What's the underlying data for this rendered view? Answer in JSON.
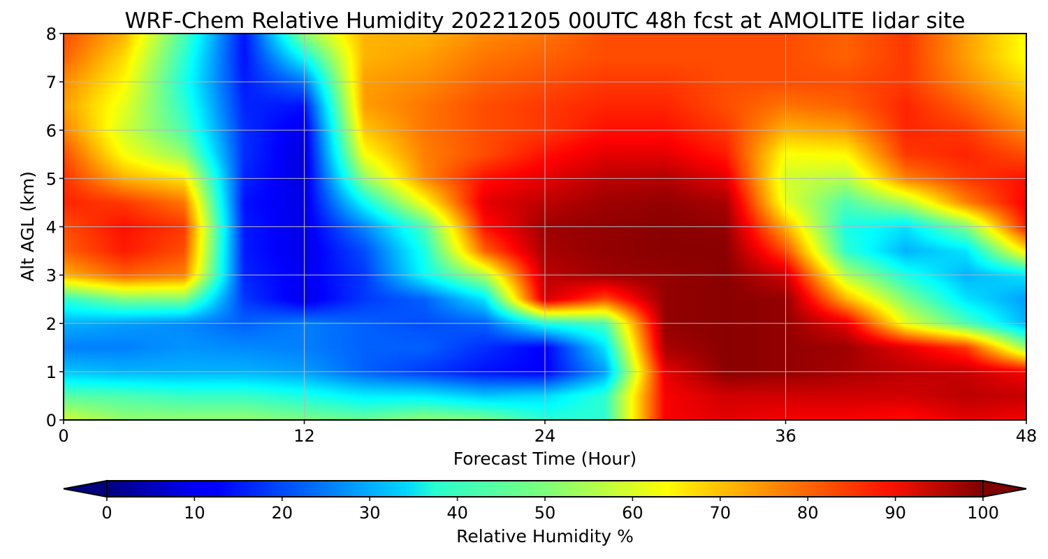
{
  "chart_data": {
    "type": "heatmap",
    "title": "WRF-Chem Relative Humidity 20221205 00UTC 48h fcst at AMOLITE lidar site",
    "xlabel": "Forecast Time (Hour)",
    "ylabel": "Alt AGL (km)",
    "xlim": [
      0,
      48
    ],
    "ylim": [
      0,
      8
    ],
    "xticks": [
      "0",
      "12",
      "24",
      "36",
      "48"
    ],
    "yticks": [
      "0",
      "1",
      "2",
      "3",
      "4",
      "5",
      "6",
      "7",
      "8"
    ],
    "grid": true,
    "colormap": "jet",
    "colorbar": {
      "label": "Relative Humidity %",
      "range": [
        0,
        100
      ],
      "ticks": [
        "0",
        "10",
        "20",
        "30",
        "40",
        "50",
        "60",
        "70",
        "80",
        "90",
        "100"
      ],
      "extend": "both",
      "orientation": "horizontal"
    },
    "x": [
      0,
      3,
      6,
      9,
      12,
      15,
      18,
      21,
      24,
      27,
      30,
      33,
      36,
      39,
      42,
      45,
      48
    ],
    "y": [
      0,
      0.5,
      1,
      1.5,
      2,
      2.5,
      3,
      3.5,
      4,
      4.5,
      5,
      5.5,
      6,
      6.5,
      7,
      7.5,
      8
    ],
    "z": [
      [
        58,
        52,
        52,
        52,
        50,
        48,
        52,
        50,
        42,
        42,
        88,
        90,
        88,
        88,
        86,
        90,
        88
      ],
      [
        46,
        45,
        43,
        43,
        40,
        36,
        36,
        32,
        34,
        42,
        88,
        92,
        92,
        92,
        92,
        94,
        93
      ],
      [
        32,
        30,
        30,
        30,
        28,
        22,
        18,
        14,
        12,
        28,
        90,
        99,
        98,
        96,
        94,
        93,
        88
      ],
      [
        25,
        25,
        27,
        26,
        25,
        22,
        22,
        17,
        12,
        35,
        96,
        99,
        98,
        97,
        90,
        82,
        52
      ],
      [
        30,
        28,
        26,
        22,
        25,
        22,
        20,
        22,
        40,
        45,
        98,
        99,
        98,
        90,
        60,
        45,
        30
      ],
      [
        42,
        50,
        50,
        18,
        10,
        18,
        22,
        35,
        92,
        80,
        98,
        99,
        98,
        70,
        50,
        35,
        28
      ],
      [
        70,
        78,
        75,
        16,
        11,
        18,
        38,
        55,
        94,
        97,
        98,
        99,
        92,
        55,
        40,
        30,
        35
      ],
      [
        78,
        85,
        80,
        15,
        10,
        20,
        40,
        78,
        96,
        98,
        99,
        99,
        80,
        42,
        30,
        35,
        65
      ],
      [
        80,
        86,
        82,
        15,
        10,
        26,
        45,
        86,
        97,
        98,
        99,
        98,
        70,
        40,
        35,
        50,
        85
      ],
      [
        84,
        82,
        76,
        14,
        10,
        38,
        62,
        90,
        94,
        97,
        98,
        96,
        60,
        45,
        55,
        75,
        88
      ],
      [
        83,
        70,
        65,
        16,
        9,
        52,
        74,
        86,
        90,
        94,
        95,
        90,
        58,
        55,
        75,
        82,
        86
      ],
      [
        80,
        62,
        52,
        17,
        9,
        62,
        75,
        80,
        86,
        90,
        90,
        85,
        62,
        63,
        82,
        84,
        80
      ],
      [
        75,
        58,
        45,
        17,
        10,
        68,
        76,
        80,
        82,
        86,
        86,
        82,
        70,
        72,
        84,
        82,
        74
      ],
      [
        72,
        60,
        42,
        16,
        14,
        72,
        76,
        80,
        82,
        84,
        84,
        80,
        76,
        78,
        84,
        78,
        70
      ],
      [
        74,
        63,
        40,
        15,
        24,
        72,
        74,
        78,
        80,
        82,
        82,
        80,
        80,
        80,
        82,
        74,
        66
      ],
      [
        78,
        66,
        42,
        14,
        38,
        70,
        72,
        76,
        78,
        80,
        80,
        80,
        80,
        78,
        82,
        72,
        62
      ],
      [
        80,
        70,
        45,
        14,
        52,
        70,
        70,
        74,
        76,
        80,
        80,
        80,
        80,
        78,
        82,
        72,
        62
      ]
    ]
  }
}
